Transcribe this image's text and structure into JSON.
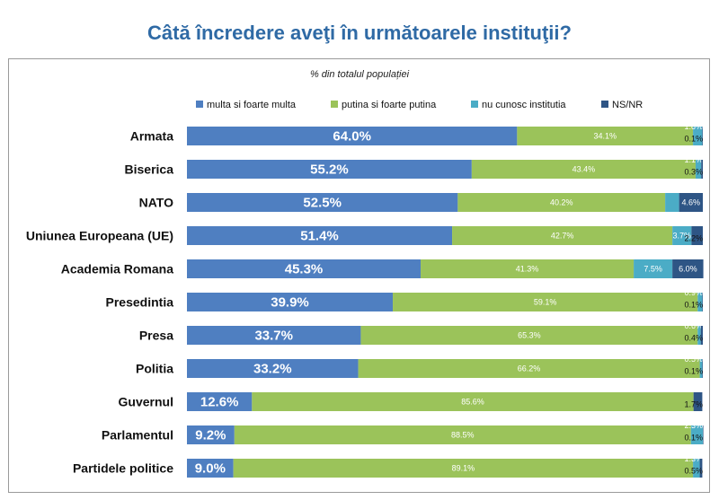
{
  "chart_data": {
    "type": "bar",
    "stacked": true,
    "orientation": "horizontal",
    "title": "Câtă încredere aveţi în următoarele instituţii?",
    "subtitle": "% din totalul populației",
    "xlim": [
      0,
      100
    ],
    "legend_position": "top",
    "categories": [
      "Armata",
      "Biserica",
      "NATO",
      "Uniunea Europeana (UE)",
      "Academia Romana",
      "Presedintia",
      "Presa",
      "Politia",
      "Guvernul",
      "Parlamentul",
      "Partidele politice"
    ],
    "series": [
      {
        "name": "multa si foarte multa",
        "color": "#4f7fc1",
        "values": [
          64.0,
          55.2,
          52.5,
          51.4,
          45.3,
          39.9,
          33.7,
          33.2,
          12.6,
          9.2,
          9.0
        ]
      },
      {
        "name": "putina si foarte putina",
        "color": "#9bc35a",
        "values": [
          34.1,
          43.4,
          40.2,
          42.7,
          41.3,
          59.1,
          65.3,
          66.2,
          85.6,
          88.5,
          89.1
        ]
      },
      {
        "name": "nu cunosc institutia",
        "color": "#4bacc6",
        "values": [
          1.8,
          1.1,
          2.7,
          3.7,
          7.5,
          0.9,
          0.6,
          0.5,
          0.0,
          2.3,
          1.3
        ]
      },
      {
        "name": "NS/NR",
        "color": "#2e5585",
        "values": [
          0.1,
          0.3,
          4.6,
          2.2,
          6.0,
          0.1,
          0.4,
          0.1,
          1.7,
          0.1,
          0.5
        ]
      }
    ],
    "labels": [
      [
        "64.0%",
        "34.1%",
        "1.8%",
        "0.1%"
      ],
      [
        "55.2%",
        "43.4%",
        "1.1%",
        "0.3%"
      ],
      [
        "52.5%",
        "40.2%",
        "2.7%",
        "4.6%"
      ],
      [
        "51.4%",
        "42.7%",
        "3.7%",
        "2.2%"
      ],
      [
        "45.3%",
        "41.3%",
        "7.5%",
        "6.0%"
      ],
      [
        "39.9%",
        "59.1%",
        "0.9%",
        "0.1%"
      ],
      [
        "33.7%",
        "65.3%",
        "0.6%",
        "0.4%"
      ],
      [
        "33.2%",
        "66.2%",
        "0.5%",
        "0.1%"
      ],
      [
        "12.6%",
        "85.6%",
        "",
        "1.7%"
      ],
      [
        "9.2%",
        "88.5%",
        "2.3%",
        "0.1%"
      ],
      [
        "9.0%",
        "89.1%",
        "1.3%",
        "0.5%"
      ]
    ]
  }
}
